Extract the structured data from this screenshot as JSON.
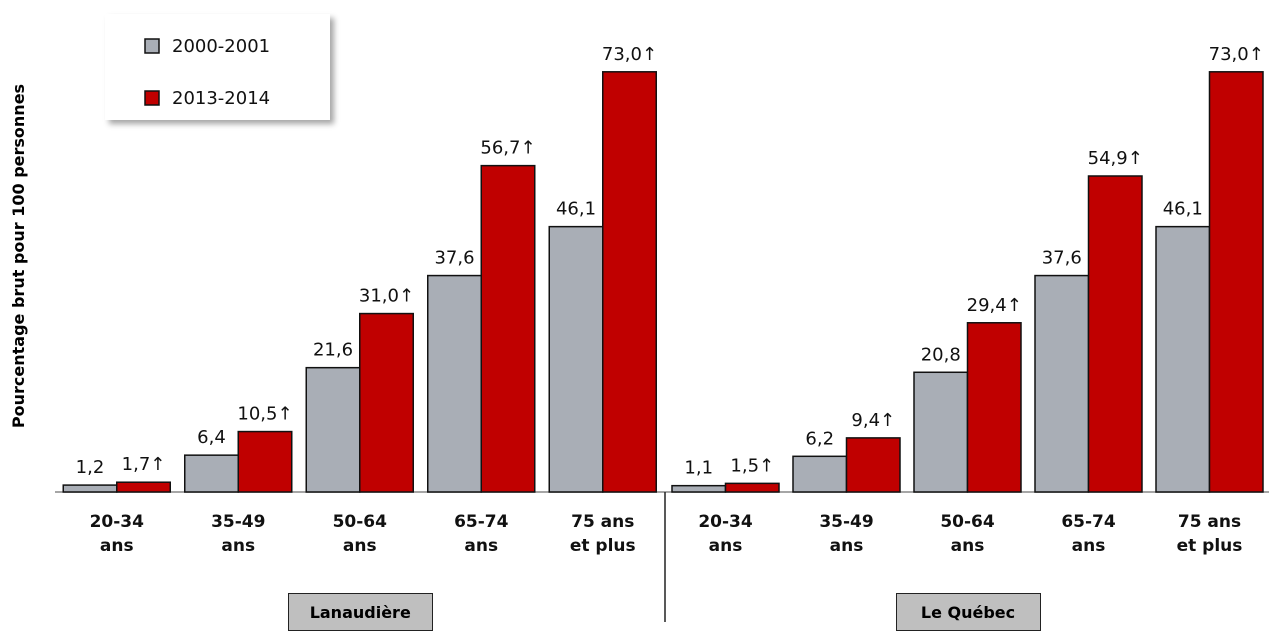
{
  "chart_data": [
    {
      "type": "bar",
      "y_label": "Pourcentage brut pour 100 personnes",
      "group": "Lanaudière",
      "categories": [
        "20-34 ans",
        "35-49 ans",
        "50-64 ans",
        "65-74 ans",
        "75 ans et plus"
      ],
      "ylim": [
        0,
        82
      ],
      "series": [
        {
          "name": "2000-2001",
          "color": "#a9aeb6",
          "values": [
            1.2,
            6.4,
            21.6,
            37.6,
            46.1
          ],
          "value_labels": [
            "1,2",
            "6,4",
            "21,6",
            "37,6",
            "46,1"
          ]
        },
        {
          "name": "2013-2014",
          "color": "#c00000",
          "values": [
            1.7,
            10.5,
            31.0,
            56.7,
            73.0
          ],
          "value_labels": [
            "1,7↑",
            "10,5↑",
            "31,0↑",
            "56,7↑",
            "73,0↑"
          ]
        }
      ]
    },
    {
      "type": "bar",
      "group": "Le Québec",
      "categories": [
        "20-34 ans",
        "35-49 ans",
        "50-64 ans",
        "65-74 ans",
        "75 ans et plus"
      ],
      "ylim": [
        0,
        82
      ],
      "series": [
        {
          "name": "2000-2001",
          "color": "#a9aeb6",
          "values": [
            1.1,
            6.2,
            20.8,
            37.6,
            46.1
          ],
          "value_labels": [
            "1,1",
            "6,2",
            "20,8",
            "37,6",
            "46,1"
          ]
        },
        {
          "name": "2013-2014",
          "color": "#c00000",
          "values": [
            1.5,
            9.4,
            29.4,
            54.9,
            73.0
          ],
          "value_labels": [
            "1,5↑",
            "9,4↑",
            "29,4↑",
            "54,9↑",
            "73,0↑"
          ]
        }
      ]
    }
  ]
}
